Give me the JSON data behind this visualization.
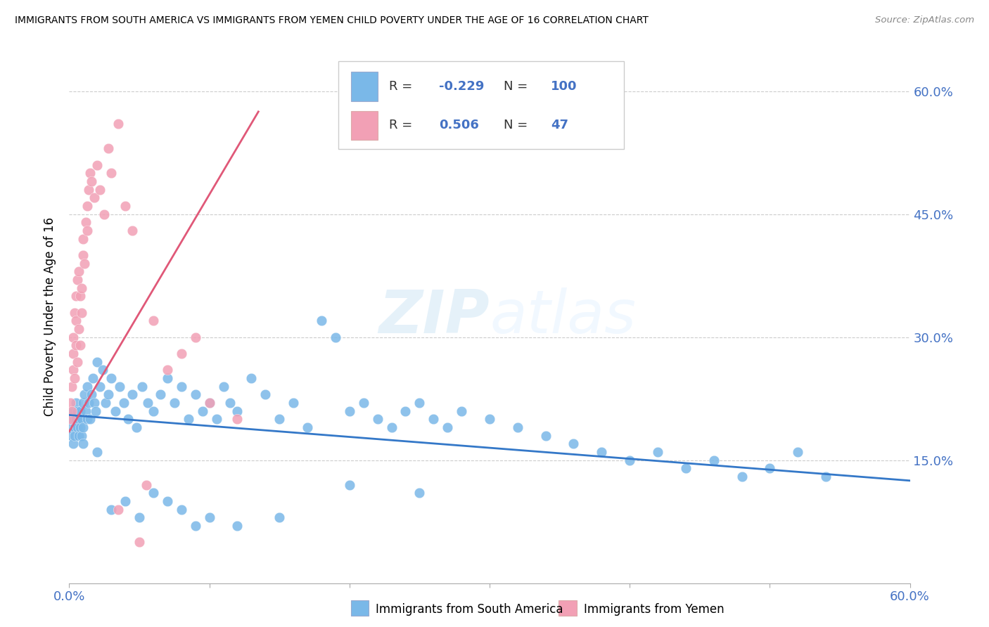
{
  "title": "IMMIGRANTS FROM SOUTH AMERICA VS IMMIGRANTS FROM YEMEN CHILD POVERTY UNDER THE AGE OF 16 CORRELATION CHART",
  "source": "Source: ZipAtlas.com",
  "ylabel": "Child Poverty Under the Age of 16",
  "legend_r_blue": "-0.229",
  "legend_n_blue": "100",
  "legend_r_pink": "0.506",
  "legend_n_pink": "47",
  "legend_label_blue": "Immigrants from South America",
  "legend_label_pink": "Immigrants from Yemen",
  "blue_color": "#7ab8e8",
  "pink_color": "#f2a0b5",
  "blue_line_color": "#3478c8",
  "pink_line_color": "#e05878",
  "text_blue": "#4472c4",
  "watermark_color": "#cce4f5",
  "blue_line_x0": 0.0,
  "blue_line_y0": 0.205,
  "blue_line_x1": 0.6,
  "blue_line_y1": 0.125,
  "pink_line_x0": 0.0,
  "pink_line_y0": 0.185,
  "pink_line_x1": 0.135,
  "pink_line_y1": 0.575,
  "xlim": [
    0.0,
    0.6
  ],
  "ylim": [
    0.0,
    0.65
  ],
  "right_yticks": [
    0.15,
    0.3,
    0.45,
    0.6
  ],
  "right_yticklabels": [
    "15.0%",
    "30.0%",
    "45.0%",
    "60.0%"
  ],
  "xtick_positions": [
    0.0,
    0.1,
    0.2,
    0.3,
    0.4,
    0.5,
    0.6
  ],
  "blue_x": [
    0.001,
    0.002,
    0.002,
    0.003,
    0.003,
    0.004,
    0.004,
    0.004,
    0.005,
    0.005,
    0.006,
    0.006,
    0.007,
    0.007,
    0.008,
    0.008,
    0.009,
    0.009,
    0.01,
    0.01,
    0.011,
    0.012,
    0.013,
    0.013,
    0.014,
    0.015,
    0.016,
    0.017,
    0.018,
    0.019,
    0.02,
    0.022,
    0.024,
    0.026,
    0.028,
    0.03,
    0.033,
    0.036,
    0.039,
    0.042,
    0.045,
    0.048,
    0.052,
    0.056,
    0.06,
    0.065,
    0.07,
    0.075,
    0.08,
    0.085,
    0.09,
    0.095,
    0.1,
    0.105,
    0.11,
    0.115,
    0.12,
    0.13,
    0.14,
    0.15,
    0.16,
    0.17,
    0.18,
    0.19,
    0.2,
    0.21,
    0.22,
    0.23,
    0.24,
    0.25,
    0.26,
    0.27,
    0.28,
    0.3,
    0.32,
    0.34,
    0.36,
    0.38,
    0.4,
    0.42,
    0.44,
    0.46,
    0.48,
    0.5,
    0.52,
    0.54,
    0.01,
    0.02,
    0.03,
    0.04,
    0.05,
    0.06,
    0.07,
    0.08,
    0.09,
    0.1,
    0.12,
    0.15,
    0.2,
    0.25
  ],
  "blue_y": [
    0.2,
    0.19,
    0.18,
    0.21,
    0.17,
    0.2,
    0.19,
    0.18,
    0.22,
    0.2,
    0.19,
    0.21,
    0.18,
    0.2,
    0.19,
    0.21,
    0.18,
    0.2,
    0.22,
    0.19,
    0.23,
    0.21,
    0.2,
    0.24,
    0.22,
    0.2,
    0.23,
    0.25,
    0.22,
    0.21,
    0.27,
    0.24,
    0.26,
    0.22,
    0.23,
    0.25,
    0.21,
    0.24,
    0.22,
    0.2,
    0.23,
    0.19,
    0.24,
    0.22,
    0.21,
    0.23,
    0.25,
    0.22,
    0.24,
    0.2,
    0.23,
    0.21,
    0.22,
    0.2,
    0.24,
    0.22,
    0.21,
    0.25,
    0.23,
    0.2,
    0.22,
    0.19,
    0.32,
    0.3,
    0.21,
    0.22,
    0.2,
    0.19,
    0.21,
    0.22,
    0.2,
    0.19,
    0.21,
    0.2,
    0.19,
    0.18,
    0.17,
    0.16,
    0.15,
    0.16,
    0.14,
    0.15,
    0.13,
    0.14,
    0.16,
    0.13,
    0.17,
    0.16,
    0.09,
    0.1,
    0.08,
    0.11,
    0.1,
    0.09,
    0.07,
    0.08,
    0.07,
    0.08,
    0.12,
    0.11
  ],
  "pink_x": [
    0.001,
    0.001,
    0.002,
    0.002,
    0.003,
    0.003,
    0.003,
    0.004,
    0.004,
    0.005,
    0.005,
    0.005,
    0.006,
    0.006,
    0.007,
    0.007,
    0.008,
    0.008,
    0.009,
    0.009,
    0.01,
    0.01,
    0.011,
    0.012,
    0.013,
    0.013,
    0.014,
    0.015,
    0.016,
    0.018,
    0.02,
    0.022,
    0.025,
    0.028,
    0.03,
    0.035,
    0.04,
    0.045,
    0.05,
    0.055,
    0.06,
    0.07,
    0.08,
    0.09,
    0.1,
    0.12,
    0.035
  ],
  "pink_y": [
    0.2,
    0.22,
    0.21,
    0.24,
    0.26,
    0.28,
    0.3,
    0.25,
    0.33,
    0.29,
    0.32,
    0.35,
    0.37,
    0.27,
    0.31,
    0.38,
    0.35,
    0.29,
    0.33,
    0.36,
    0.4,
    0.42,
    0.39,
    0.44,
    0.46,
    0.43,
    0.48,
    0.5,
    0.49,
    0.47,
    0.51,
    0.48,
    0.45,
    0.53,
    0.5,
    0.56,
    0.46,
    0.43,
    0.05,
    0.12,
    0.32,
    0.26,
    0.28,
    0.3,
    0.22,
    0.2,
    0.09
  ]
}
